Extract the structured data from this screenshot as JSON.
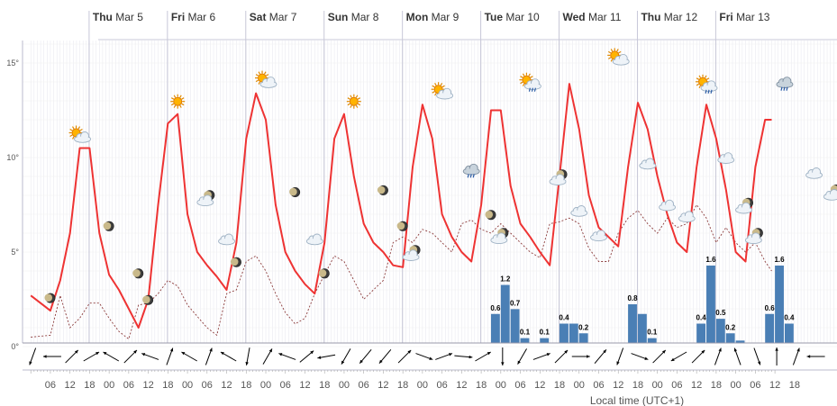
{
  "chart_data": {
    "type": "meteogram",
    "x_axis_title": "Local time (UTC+1)",
    "x_range_hours": [
      0,
      228
    ],
    "x_tick_labels": [
      "06",
      "12",
      "18",
      "00",
      "06",
      "12",
      "18",
      "00",
      "06",
      "12",
      "18",
      "00",
      "06",
      "12",
      "18",
      "00",
      "06",
      "12",
      "18",
      "00",
      "06",
      "12",
      "18",
      "00",
      "06",
      "12",
      "18",
      "00",
      "06",
      "12",
      "18",
      "00",
      "06",
      "12",
      "18",
      "00",
      "06",
      "12",
      "18"
    ],
    "days": [
      {
        "weekday": "Thu",
        "date": "Mar 5"
      },
      {
        "weekday": "Fri",
        "date": "Mar 6"
      },
      {
        "weekday": "Sat",
        "date": "Mar 7"
      },
      {
        "weekday": "Sun",
        "date": "Mar 8"
      },
      {
        "weekday": "Mon",
        "date": "Mar 9"
      },
      {
        "weekday": "Tue",
        "date": "Mar 10"
      },
      {
        "weekday": "Wed",
        "date": "Mar 11"
      },
      {
        "weekday": "Thu",
        "date": "Mar 12"
      },
      {
        "weekday": "Fri",
        "date": "Mar 13"
      }
    ],
    "y_range": [
      0,
      16
    ],
    "y_ticks": [
      {
        "value": 0,
        "label": "0°"
      },
      {
        "value": 5,
        "label": "5°"
      },
      {
        "value": 10,
        "label": "10°"
      },
      {
        "value": 15,
        "label": "15°"
      }
    ],
    "series": [
      {
        "kind": "temperature",
        "color": "#ee3333",
        "points": [
          [
            0,
            2.7
          ],
          [
            6,
            1.9
          ],
          [
            9,
            3.5
          ],
          [
            12,
            6.0
          ],
          [
            15,
            10.5
          ],
          [
            18,
            10.5
          ],
          [
            21,
            6.0
          ],
          [
            24,
            3.8
          ],
          [
            27,
            3.0
          ],
          [
            30,
            2.0
          ],
          [
            33,
            1.0
          ],
          [
            36,
            2.5
          ],
          [
            39,
            7.5
          ],
          [
            42,
            11.8
          ],
          [
            45,
            12.3
          ],
          [
            48,
            7.0
          ],
          [
            51,
            5.0
          ],
          [
            54,
            4.3
          ],
          [
            57,
            3.7
          ],
          [
            60,
            3.0
          ],
          [
            63,
            5.5
          ],
          [
            66,
            11.0
          ],
          [
            69,
            13.4
          ],
          [
            72,
            12.0
          ],
          [
            75,
            7.5
          ],
          [
            78,
            5.0
          ],
          [
            81,
            4.0
          ],
          [
            84,
            3.3
          ],
          [
            87,
            2.8
          ],
          [
            90,
            5.5
          ],
          [
            93,
            11.0
          ],
          [
            96,
            12.3
          ],
          [
            99,
            9.0
          ],
          [
            102,
            6.5
          ],
          [
            105,
            5.5
          ],
          [
            108,
            5.0
          ],
          [
            111,
            4.3
          ],
          [
            114,
            4.2
          ],
          [
            117,
            9.5
          ],
          [
            120,
            12.8
          ],
          [
            123,
            11.0
          ],
          [
            126,
            7.0
          ],
          [
            129,
            5.8
          ],
          [
            132,
            5.0
          ],
          [
            135,
            4.5
          ],
          [
            138,
            7.5
          ],
          [
            141,
            12.5
          ],
          [
            144,
            12.5
          ],
          [
            147,
            8.5
          ],
          [
            150,
            6.5
          ],
          [
            153,
            5.8
          ],
          [
            156,
            5.0
          ],
          [
            159,
            4.3
          ],
          [
            162,
            9.0
          ],
          [
            165,
            13.9
          ],
          [
            168,
            11.5
          ],
          [
            171,
            8.0
          ],
          [
            174,
            6.3
          ],
          [
            177,
            5.8
          ],
          [
            180,
            5.3
          ],
          [
            183,
            9.5
          ],
          [
            186,
            12.9
          ],
          [
            189,
            11.5
          ],
          [
            192,
            9.0
          ],
          [
            195,
            7.0
          ],
          [
            198,
            5.5
          ],
          [
            201,
            5.0
          ],
          [
            204,
            9.5
          ],
          [
            207,
            12.8
          ],
          [
            210,
            11.0
          ],
          [
            213,
            8.3
          ],
          [
            216,
            5.0
          ],
          [
            219,
            4.5
          ],
          [
            222,
            9.5
          ],
          [
            225,
            12.0
          ],
          [
            227,
            12.0
          ]
        ]
      },
      {
        "kind": "dew_point",
        "color": "#8b3a3a",
        "points": [
          [
            0,
            0.5
          ],
          [
            6,
            0.6
          ],
          [
            9,
            2.7
          ],
          [
            12,
            1.0
          ],
          [
            15,
            1.5
          ],
          [
            18,
            2.3
          ],
          [
            21,
            2.3
          ],
          [
            24,
            1.5
          ],
          [
            27,
            0.8
          ],
          [
            30,
            0.4
          ],
          [
            33,
            2.2
          ],
          [
            36,
            2.3
          ],
          [
            39,
            2.8
          ],
          [
            42,
            3.5
          ],
          [
            45,
            3.2
          ],
          [
            48,
            2.2
          ],
          [
            51,
            1.6
          ],
          [
            54,
            1.0
          ],
          [
            57,
            0.6
          ],
          [
            60,
            2.8
          ],
          [
            63,
            3.0
          ],
          [
            66,
            4.5
          ],
          [
            69,
            4.8
          ],
          [
            72,
            4.0
          ],
          [
            75,
            2.8
          ],
          [
            78,
            1.8
          ],
          [
            81,
            1.2
          ],
          [
            84,
            1.5
          ],
          [
            87,
            2.8
          ],
          [
            90,
            3.8
          ],
          [
            93,
            4.8
          ],
          [
            96,
            4.5
          ],
          [
            99,
            3.5
          ],
          [
            102,
            2.5
          ],
          [
            105,
            3.0
          ],
          [
            108,
            3.5
          ],
          [
            111,
            5.5
          ],
          [
            114,
            5.8
          ],
          [
            117,
            5.5
          ],
          [
            120,
            6.2
          ],
          [
            123,
            6.0
          ],
          [
            126,
            5.5
          ],
          [
            129,
            5.0
          ],
          [
            132,
            6.5
          ],
          [
            135,
            6.7
          ],
          [
            138,
            6.2
          ],
          [
            141,
            6.0
          ],
          [
            144,
            6.5
          ],
          [
            147,
            6.0
          ],
          [
            150,
            5.5
          ],
          [
            153,
            5.0
          ],
          [
            156,
            4.7
          ],
          [
            159,
            6.5
          ],
          [
            162,
            6.6
          ],
          [
            165,
            6.8
          ],
          [
            168,
            6.5
          ],
          [
            171,
            5.2
          ],
          [
            174,
            4.5
          ],
          [
            177,
            4.5
          ],
          [
            180,
            6.0
          ],
          [
            183,
            6.8
          ],
          [
            186,
            7.2
          ],
          [
            189,
            6.5
          ],
          [
            192,
            6.0
          ],
          [
            195,
            6.8
          ],
          [
            198,
            6.3
          ],
          [
            201,
            6.5
          ],
          [
            204,
            7.5
          ],
          [
            207,
            6.8
          ],
          [
            210,
            5.5
          ],
          [
            213,
            6.3
          ],
          [
            216,
            5.5
          ],
          [
            219,
            5.0
          ],
          [
            222,
            5.5
          ],
          [
            225,
            4.5
          ],
          [
            227,
            4.0
          ]
        ]
      }
    ],
    "precipitation": [
      {
        "hour": 141,
        "value": 0.6,
        "label": "0.6"
      },
      {
        "hour": 144,
        "value": 1.2,
        "label": "1.2"
      },
      {
        "hour": 147,
        "value": 0.7,
        "label": "0.7"
      },
      {
        "hour": 150,
        "value": 0.1,
        "label": "0.1"
      },
      {
        "hour": 156,
        "value": 0.1,
        "label": "0.1"
      },
      {
        "hour": 162,
        "value": 0.4,
        "label": "0.4"
      },
      {
        "hour": 165,
        "value": 0.4,
        "label": ""
      },
      {
        "hour": 168,
        "value": 0.2,
        "label": "0.2"
      },
      {
        "hour": 183,
        "value": 0.8,
        "label": "0.8"
      },
      {
        "hour": 186,
        "value": 0.6,
        "label": ""
      },
      {
        "hour": 189,
        "value": 0.1,
        "label": "0.1"
      },
      {
        "hour": 204,
        "value": 0.4,
        "label": "0.4"
      },
      {
        "hour": 207,
        "value": 1.6,
        "label": "1.6"
      },
      {
        "hour": 210,
        "value": 0.5,
        "label": "0.5"
      },
      {
        "hour": 213,
        "value": 0.2,
        "label": "0.2"
      },
      {
        "hour": 216,
        "value": 0.05,
        "label": ""
      },
      {
        "hour": 225,
        "value": 0.6,
        "label": "0.6"
      },
      {
        "hour": 228,
        "value": 1.6,
        "label": "1.6"
      },
      {
        "hour": 231,
        "value": 0.4,
        "label": "0.4"
      }
    ],
    "precipitation_scale": {
      "max": 1.6
    },
    "weather_symbols": [
      {
        "hour": 6,
        "temp": 1.9,
        "icon": "moon-icon"
      },
      {
        "hour": 15,
        "temp": 10.5,
        "icon": "sun-cloud-icon"
      },
      {
        "hour": 24,
        "temp": 5.7,
        "icon": "moon-icon"
      },
      {
        "hour": 33,
        "temp": 3.2,
        "icon": "moon-icon"
      },
      {
        "hour": 36,
        "temp": 1.8,
        "icon": "moon-icon"
      },
      {
        "hour": 45,
        "temp": 12.3,
        "icon": "sun-icon"
      },
      {
        "hour": 54,
        "temp": 7.2,
        "icon": "moon-cloud-icon"
      },
      {
        "hour": 60,
        "temp": 5.0,
        "icon": "cloud-icon"
      },
      {
        "hour": 63,
        "temp": 3.8,
        "icon": "moon-icon"
      },
      {
        "hour": 72,
        "temp": 13.4,
        "icon": "sun-cloud-icon"
      },
      {
        "hour": 81,
        "temp": 7.5,
        "icon": "moon-icon"
      },
      {
        "hour": 87,
        "temp": 5.0,
        "icon": "cloud-icon"
      },
      {
        "hour": 90,
        "temp": 3.2,
        "icon": "moon-icon"
      },
      {
        "hour": 99,
        "temp": 12.3,
        "icon": "sun-icon"
      },
      {
        "hour": 108,
        "temp": 7.6,
        "icon": "moon-icon"
      },
      {
        "hour": 114,
        "temp": 5.7,
        "icon": "moon-icon"
      },
      {
        "hour": 117,
        "temp": 4.3,
        "icon": "moon-cloud-icon"
      },
      {
        "hour": 126,
        "temp": 12.8,
        "icon": "sun-cloud-icon"
      },
      {
        "hour": 135,
        "temp": 8.7,
        "icon": "rain-cloud-icon"
      },
      {
        "hour": 141,
        "temp": 6.3,
        "icon": "moon-icon"
      },
      {
        "hour": 144,
        "temp": 5.2,
        "icon": "moon-cloud-icon"
      },
      {
        "hour": 153,
        "temp": 13.3,
        "icon": "sun-rain-icon"
      },
      {
        "hour": 162,
        "temp": 8.3,
        "icon": "moon-cloud-icon"
      },
      {
        "hour": 168,
        "temp": 6.5,
        "icon": "cloud-icon"
      },
      {
        "hour": 174,
        "temp": 5.2,
        "icon": "cloud-icon"
      },
      {
        "hour": 180,
        "temp": 14.6,
        "icon": "sun-cloud-icon"
      },
      {
        "hour": 189,
        "temp": 9.0,
        "icon": "cloud-icon"
      },
      {
        "hour": 195,
        "temp": 6.8,
        "icon": "cloud-icon"
      },
      {
        "hour": 201,
        "temp": 6.2,
        "icon": "cloud-icon"
      },
      {
        "hour": 207,
        "temp": 13.2,
        "icon": "sun-rain-icon"
      },
      {
        "hour": 213,
        "temp": 9.3,
        "icon": "cloud-icon"
      },
      {
        "hour": 219,
        "temp": 6.8,
        "icon": "moon-cloud-icon"
      },
      {
        "hour": 222,
        "temp": 5.2,
        "icon": "moon-cloud-icon"
      },
      {
        "hour": 231,
        "temp": 13.3,
        "icon": "rain-cloud-icon"
      },
      {
        "hour": 240,
        "temp": 8.5,
        "icon": "cloud-icon"
      },
      {
        "hour": 246,
        "temp": 7.5,
        "icon": "moon-cloud-icon"
      },
      {
        "hour": 252,
        "temp": 5.3,
        "icon": "cloud-icon"
      },
      {
        "hour": 261,
        "temp": 12.8,
        "icon": "cloud-icon"
      },
      {
        "hour": 270,
        "temp": 8.3,
        "icon": "cloud-icon"
      },
      {
        "hour": 276,
        "temp": 6.0,
        "icon": "cloud-icon"
      }
    ],
    "wind_directions_deg": [
      200,
      270,
      45,
      60,
      300,
      45,
      290,
      20,
      300,
      20,
      300,
      190,
      30,
      290,
      50,
      260,
      210,
      220,
      220,
      45,
      110,
      70,
      95,
      60,
      180,
      210,
      70,
      45,
      90,
      40,
      200,
      110,
      45,
      240,
      45,
      20,
      340,
      160,
      0,
      20,
      270
    ],
    "colors": {
      "temperature": "#ee3333",
      "dew_point": "#8b3a3a",
      "precipitation": "#4a7fb5",
      "grid": "#e6e6ee",
      "day_separator": "#c8c8d8",
      "axis": "#bbbbcc"
    }
  }
}
